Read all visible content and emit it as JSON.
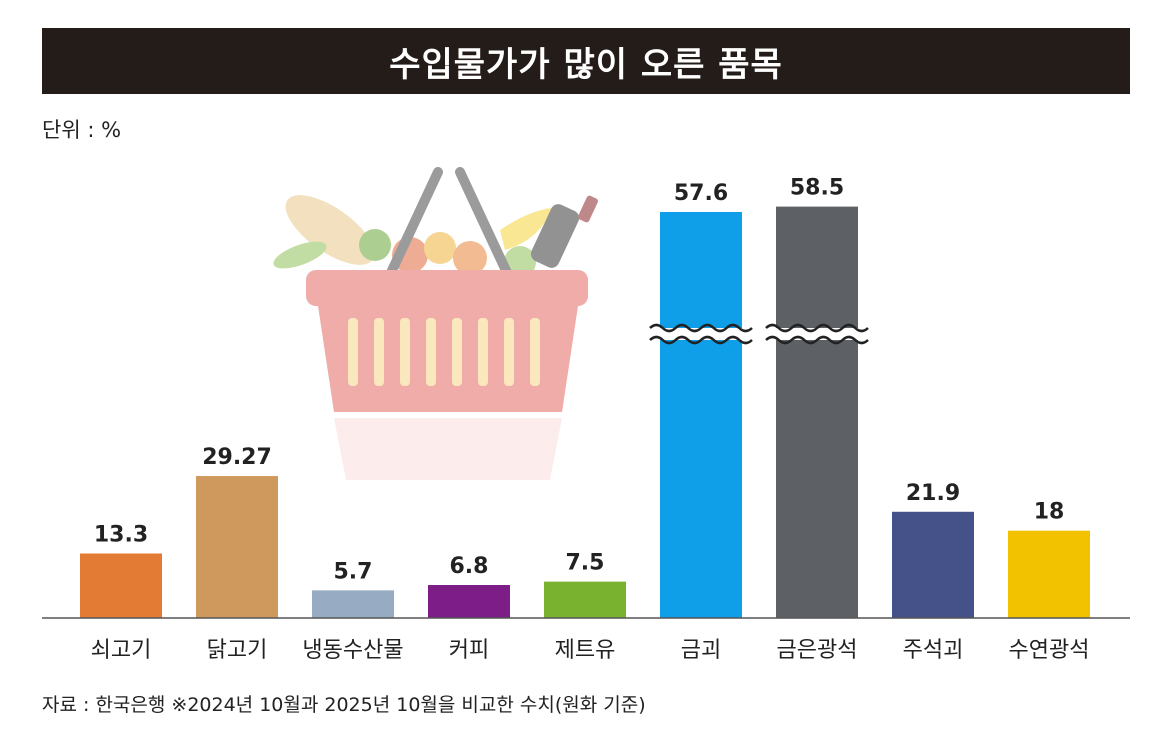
{
  "title": "수입물가가 많이 오른 품목",
  "unit_label": "단위 : %",
  "source_note": "자료 : 한국은행 ※2024년 10월과 2025년 10월을 비교한 수치(원화 기준)",
  "chart_data": {
    "type": "bar",
    "categories": [
      "쇠고기",
      "닭고기",
      "냉동수산물",
      "커피",
      "제트유",
      "금괴",
      "금은광석",
      "주석괴",
      "수연광석"
    ],
    "values": [
      13.3,
      29.27,
      5.7,
      6.8,
      7.5,
      57.6,
      58.5,
      21.9,
      18
    ],
    "value_labels": [
      "13.3",
      "29.27",
      "5.7",
      "6.8",
      "7.5",
      "57.6",
      "58.5",
      "21.9",
      "18"
    ],
    "colors": [
      "#e37b35",
      "#cf995e",
      "#97abc3",
      "#7c1d88",
      "#78b22f",
      "#0f9ee8",
      "#5d6166",
      "#45528a",
      "#f2c100"
    ],
    "broken_axis_bars": [
      "금괴",
      "금은광석"
    ],
    "title": "수입물가가 많이 오른 품목",
    "xlabel": "",
    "ylabel": "",
    "unit": "%",
    "grid": false,
    "legend": "none"
  }
}
